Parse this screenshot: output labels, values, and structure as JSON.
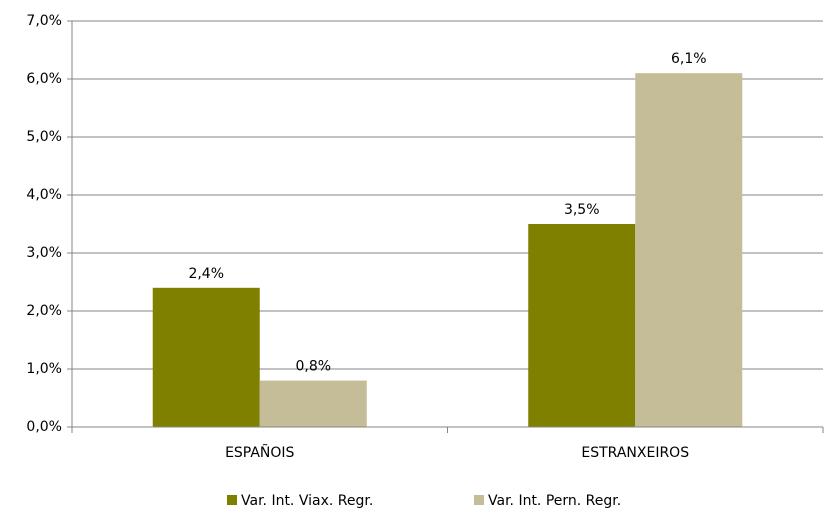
{
  "chart_data": {
    "type": "bar",
    "categories": [
      "ESPAÑOIS",
      "ESTRANXEIROS"
    ],
    "series": [
      {
        "name": "Var. Int. Viax. Regr.",
        "color": "#808000",
        "values": [
          2.4,
          3.5
        ],
        "value_labels": [
          "2,4%",
          "3,5%"
        ]
      },
      {
        "name": "Var. Int. Pern. Regr.",
        "color": "#c4bd97",
        "values": [
          0.8,
          6.1
        ],
        "value_labels": [
          "0,8%",
          "6,1%"
        ]
      }
    ],
    "ylim": [
      0,
      7
    ],
    "yticks": [
      {
        "value": 0,
        "label": "0,0%"
      },
      {
        "value": 1,
        "label": "1,0%"
      },
      {
        "value": 2,
        "label": "2,0%"
      },
      {
        "value": 3,
        "label": "3,0%"
      },
      {
        "value": 4,
        "label": "4,0%"
      },
      {
        "value": 5,
        "label": "5,0%"
      },
      {
        "value": 6,
        "label": "6,0%"
      },
      {
        "value": 7,
        "label": "7,0%"
      }
    ],
    "grid": true,
    "legend": "bottom"
  }
}
